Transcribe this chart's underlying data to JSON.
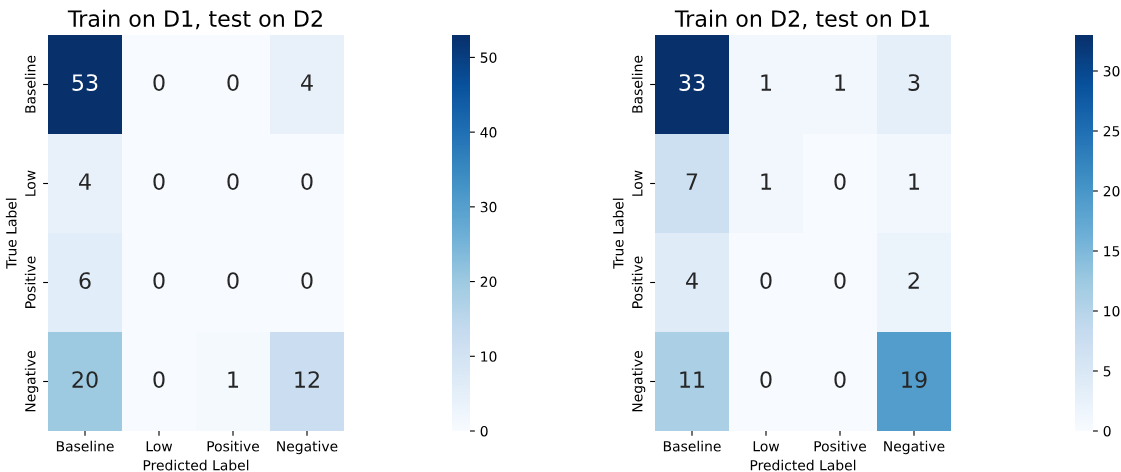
{
  "chart_data": [
    {
      "type": "heatmap",
      "title": "Train on D1, test on D2",
      "xlabel": "Predicted Label",
      "ylabel": "True Label",
      "categories": [
        "Baseline",
        "Low",
        "Positive",
        "Negative"
      ],
      "y_categories": [
        "Baseline",
        "Low",
        "Positive",
        "Negative"
      ],
      "cells": [
        [
          53,
          0,
          0,
          4
        ],
        [
          4,
          0,
          0,
          0
        ],
        [
          6,
          0,
          0,
          0
        ],
        [
          20,
          0,
          1,
          12
        ]
      ],
      "clim": [
        0,
        53
      ],
      "cticks": [
        0,
        10,
        20,
        30,
        40,
        50
      ],
      "data_labels": true
    },
    {
      "type": "heatmap",
      "title": "Train on D2, test on D1",
      "xlabel": "Predicted Label",
      "ylabel": "True Label",
      "categories": [
        "Baseline",
        "Low",
        "Positive",
        "Negative"
      ],
      "y_categories": [
        "Baseline",
        "Low",
        "Positive",
        "Negative"
      ],
      "cells": [
        [
          33,
          1,
          1,
          3
        ],
        [
          7,
          1,
          0,
          1
        ],
        [
          4,
          0,
          0,
          2
        ],
        [
          11,
          0,
          0,
          19
        ]
      ],
      "clim": [
        0,
        33
      ],
      "cticks": [
        0,
        5,
        10,
        15,
        20,
        25,
        30
      ],
      "data_labels": true
    }
  ]
}
